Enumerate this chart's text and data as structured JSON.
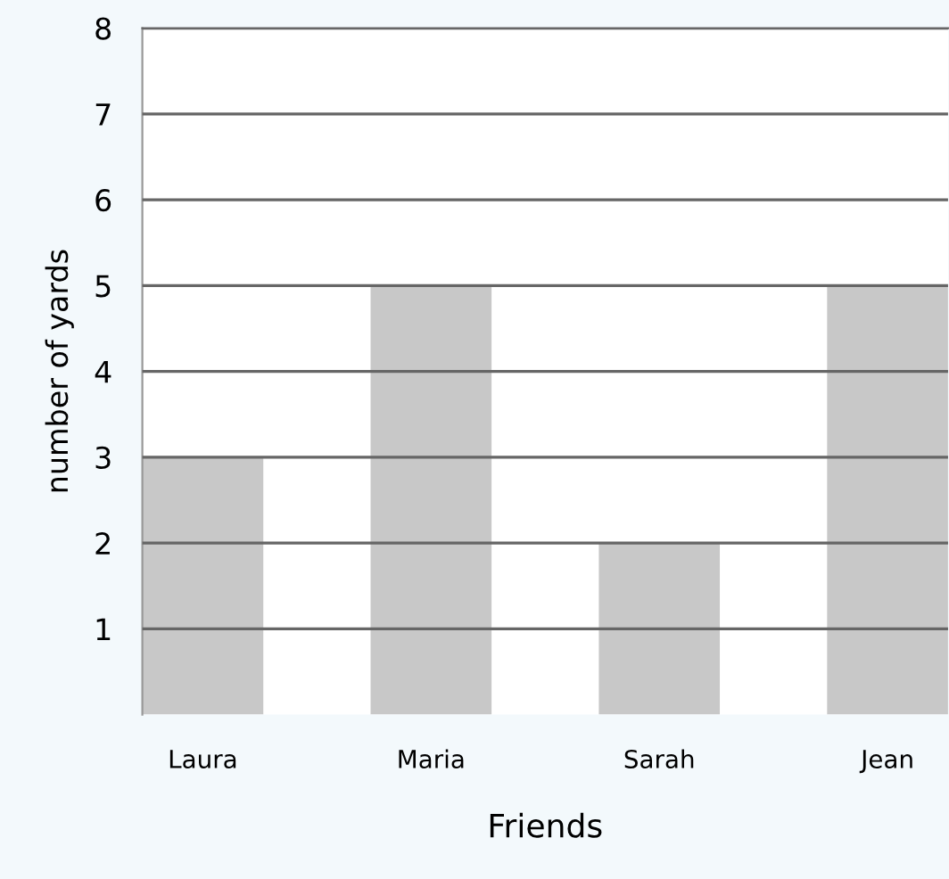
{
  "chart_data": {
    "type": "bar",
    "xlabel": "Friends",
    "ylabel": "number of yards",
    "categories": [
      "Laura",
      "Maria",
      "Sarah",
      "Jean"
    ],
    "values": [
      3,
      5,
      2,
      5
    ],
    "color": "#c8c8c8",
    "ylim": [
      0,
      8
    ],
    "yticks": [
      1,
      2,
      3,
      4,
      5,
      6,
      7,
      8
    ],
    "grid": "y"
  }
}
